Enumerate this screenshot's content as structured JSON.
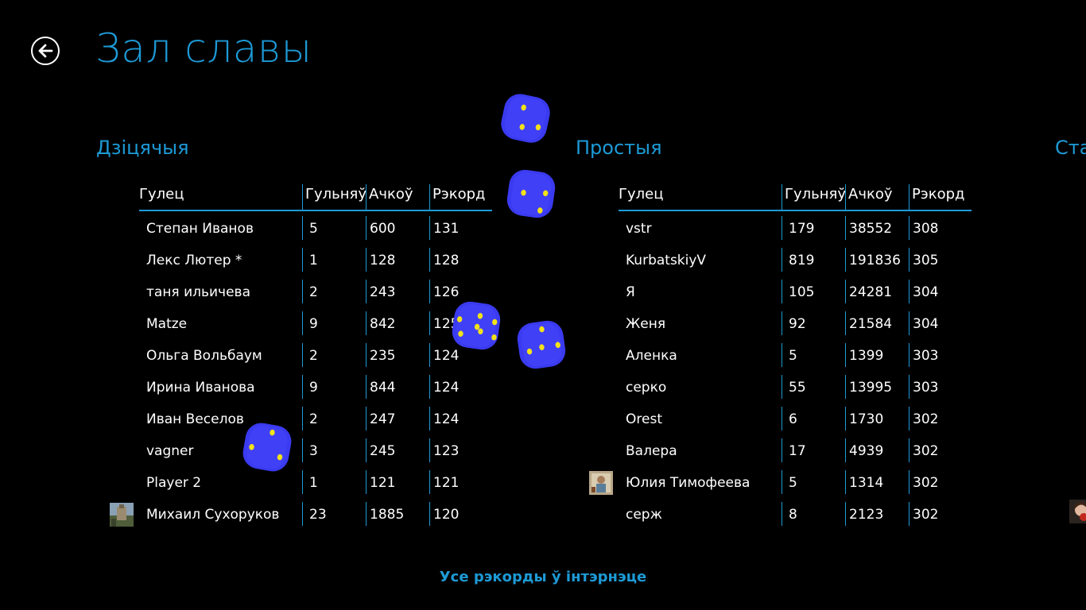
{
  "page": {
    "title": "Зал славы",
    "footer_link": "Усе рэкорды ў інтэрнэце"
  },
  "columns": {
    "player": "Гулец",
    "games": "Гульняў",
    "points": "Ачкоў",
    "record": "Рэкорд"
  },
  "sections": [
    {
      "title": "Дзіцячыя",
      "rows": [
        {
          "player": "Степан Иванов",
          "games": "5",
          "points": "600",
          "record": "131"
        },
        {
          "player": "Лекс Лютер *",
          "games": "1",
          "points": "128",
          "record": "128"
        },
        {
          "player": "таня ильичева",
          "games": "2",
          "points": "243",
          "record": "126"
        },
        {
          "player": "Matze",
          "games": "9",
          "points": "842",
          "record": "125"
        },
        {
          "player": "Ольга Вольбаум",
          "games": "2",
          "points": "235",
          "record": "124"
        },
        {
          "player": "Ирина Иванова",
          "games": "9",
          "points": "844",
          "record": "124"
        },
        {
          "player": "Иван Веселов",
          "games": "2",
          "points": "247",
          "record": "124"
        },
        {
          "player": "vagner",
          "games": "3",
          "points": "245",
          "record": "123"
        },
        {
          "player": "Player 2",
          "games": "1",
          "points": "121",
          "record": "121"
        },
        {
          "player": "Михаил Сухоруков",
          "games": "23",
          "points": "1885",
          "record": "120",
          "avatar": true
        }
      ]
    },
    {
      "title": "Простыя",
      "rows": [
        {
          "player": "vstr",
          "games": "179",
          "points": "38552",
          "record": "308"
        },
        {
          "player": "KurbatskiyV",
          "games": "819",
          "points": "191836",
          "record": "305"
        },
        {
          "player": "Я",
          "games": "105",
          "points": "24281",
          "record": "304"
        },
        {
          "player": "Женя",
          "games": "92",
          "points": "21584",
          "record": "304"
        },
        {
          "player": "Аленка",
          "games": "5",
          "points": "1399",
          "record": "303"
        },
        {
          "player": "серко",
          "games": "55",
          "points": "13995",
          "record": "303"
        },
        {
          "player": "Orest",
          "games": "6",
          "points": "1730",
          "record": "302"
        },
        {
          "player": "Валера",
          "games": "17",
          "points": "4939",
          "record": "302"
        },
        {
          "player": "Юлия Тимофеева",
          "games": "5",
          "points": "1314",
          "record": "302",
          "avatar": true
        },
        {
          "player": "серж",
          "games": "8",
          "points": "2123",
          "record": "302"
        }
      ]
    },
    {
      "title": "Ста",
      "rows": []
    }
  ],
  "colors": {
    "accent": "#1d9ad6",
    "die": "#3a3af0",
    "pip": "#f2e21a"
  },
  "icons": {
    "back": "back-arrow-icon",
    "die": "die-icon"
  }
}
